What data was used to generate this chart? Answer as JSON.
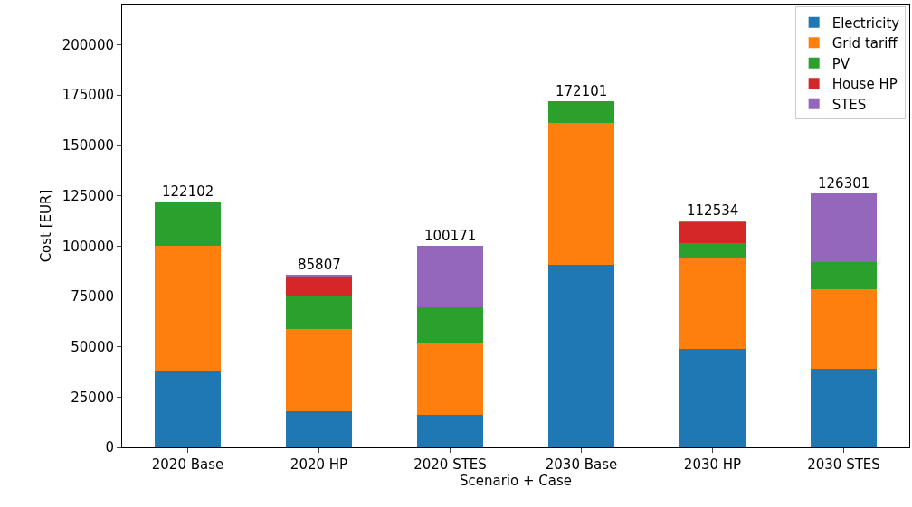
{
  "chart_data": {
    "type": "bar",
    "stacked": true,
    "xlabel": "Scenario + Case",
    "ylabel": "Cost [EUR]",
    "categories": [
      "2020 Base",
      "2020 HP",
      "2020 STES",
      "2030 Base",
      "2030 HP",
      "2030 STES"
    ],
    "series": [
      {
        "name": "Electricity",
        "color": "#1f77b4",
        "values": [
          38000,
          18000,
          16000,
          90500,
          49000,
          39000
        ]
      },
      {
        "name": "Grid tariff",
        "color": "#ff7f0e",
        "values": [
          62000,
          41000,
          36000,
          70500,
          45000,
          39500
        ]
      },
      {
        "name": "PV",
        "color": "#2ca02c",
        "values": [
          22102,
          16000,
          17500,
          11101,
          7500,
          13500
        ]
      },
      {
        "name": "House HP",
        "color": "#d62728",
        "values": [
          0,
          10300,
          0,
          0,
          10500,
          0
        ]
      },
      {
        "name": "STES",
        "color": "#9467bd",
        "values": [
          0,
          507,
          30671,
          0,
          534,
          34301
        ]
      }
    ],
    "totals": [
      "122102",
      "85807",
      "100171",
      "172101",
      "112534",
      "126301"
    ],
    "ylim": [
      0,
      220000
    ],
    "yticks": [
      0,
      25000,
      50000,
      75000,
      100000,
      125000,
      150000,
      175000,
      200000
    ],
    "grid": false,
    "legend": "top right"
  }
}
